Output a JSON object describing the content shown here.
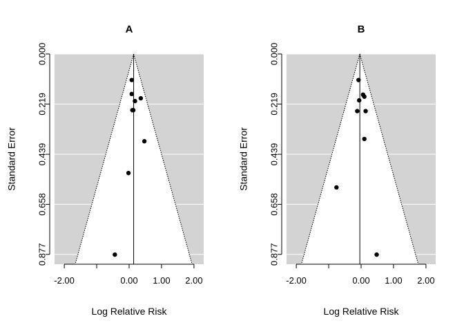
{
  "chart_data": [
    {
      "type": "scatter",
      "title": "A",
      "xlabel": "Log Relative Risk",
      "ylabel": "Standard Error",
      "xlim": [
        -2.3,
        2.3
      ],
      "ylim": [
        0.0,
        0.92
      ],
      "y_reversed": true,
      "x_ticks": [
        -2,
        -1,
        0,
        1,
        2
      ],
      "x_tick_labels": [
        "-2.00",
        "",
        "0.00",
        "1.00",
        "2.00"
      ],
      "y_ticks": [
        0.0,
        0.219,
        0.439,
        0.658,
        0.877
      ],
      "y_tick_labels": [
        "0.000",
        "0.219",
        "0.439",
        "0.658",
        "0.877"
      ],
      "pooled_estimate": 0.14,
      "funnel_apex": 0.14,
      "background_color": "#d3d3d3",
      "funnel_fill": "#ffffff",
      "grid": "horizontal",
      "points": [
        {
          "x": 0.08,
          "y": 0.114
        },
        {
          "x": 0.08,
          "y": 0.175
        },
        {
          "x": 0.18,
          "y": 0.206
        },
        {
          "x": 0.36,
          "y": 0.194
        },
        {
          "x": 0.1,
          "y": 0.246
        },
        {
          "x": 0.13,
          "y": 0.246
        },
        {
          "x": 0.47,
          "y": 0.382
        },
        {
          "x": -0.02,
          "y": 0.521
        },
        {
          "x": -0.44,
          "y": 0.878
        }
      ]
    },
    {
      "type": "scatter",
      "title": "B",
      "xlabel": "Log Relative Risk",
      "ylabel": "Standard Error",
      "xlim": [
        -2.3,
        2.3
      ],
      "ylim": [
        0.0,
        0.92
      ],
      "y_reversed": true,
      "x_ticks": [
        -2,
        -1,
        0,
        1,
        2
      ],
      "x_tick_labels": [
        "-2.00",
        "",
        "0.00",
        "1.00",
        "2.00"
      ],
      "y_ticks": [
        0.0,
        0.219,
        0.439,
        0.658,
        0.877
      ],
      "y_tick_labels": [
        "0.000",
        "0.219",
        "0.439",
        "0.658",
        "0.877"
      ],
      "pooled_estimate": -0.04,
      "funnel_apex": -0.04,
      "background_color": "#d3d3d3",
      "funnel_fill": "#ffffff",
      "grid": "horizontal",
      "points": [
        {
          "x": -0.08,
          "y": 0.114
        },
        {
          "x": 0.06,
          "y": 0.178
        },
        {
          "x": 0.1,
          "y": 0.187
        },
        {
          "x": -0.06,
          "y": 0.203
        },
        {
          "x": -0.12,
          "y": 0.25
        },
        {
          "x": 0.14,
          "y": 0.25
        },
        {
          "x": 0.1,
          "y": 0.372
        },
        {
          "x": -0.76,
          "y": 0.584
        },
        {
          "x": 0.48,
          "y": 0.878
        }
      ]
    }
  ]
}
